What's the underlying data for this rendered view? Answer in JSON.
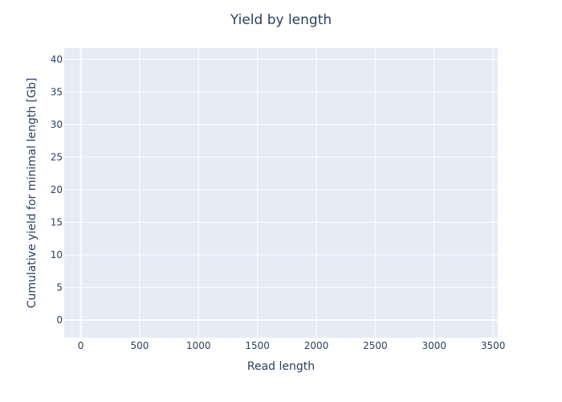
{
  "chart_data": {
    "type": "line",
    "title": "Yield by length",
    "xlabel": "Read length",
    "ylabel": "Cumulative yield for minimal length [Gb]",
    "xlim": [
      -140,
      3540
    ],
    "ylim": [
      -2.7,
      41.7
    ],
    "xticks": [
      0,
      500,
      1000,
      1500,
      2000,
      2500,
      3000,
      3500
    ],
    "yticks": [
      0,
      5,
      10,
      15,
      20,
      25,
      30,
      35,
      40
    ],
    "grid": true,
    "series": []
  },
  "colors": {
    "plot_background": "#e5ecf6",
    "grid": "#ffffff",
    "text": "#2a3f5f"
  }
}
